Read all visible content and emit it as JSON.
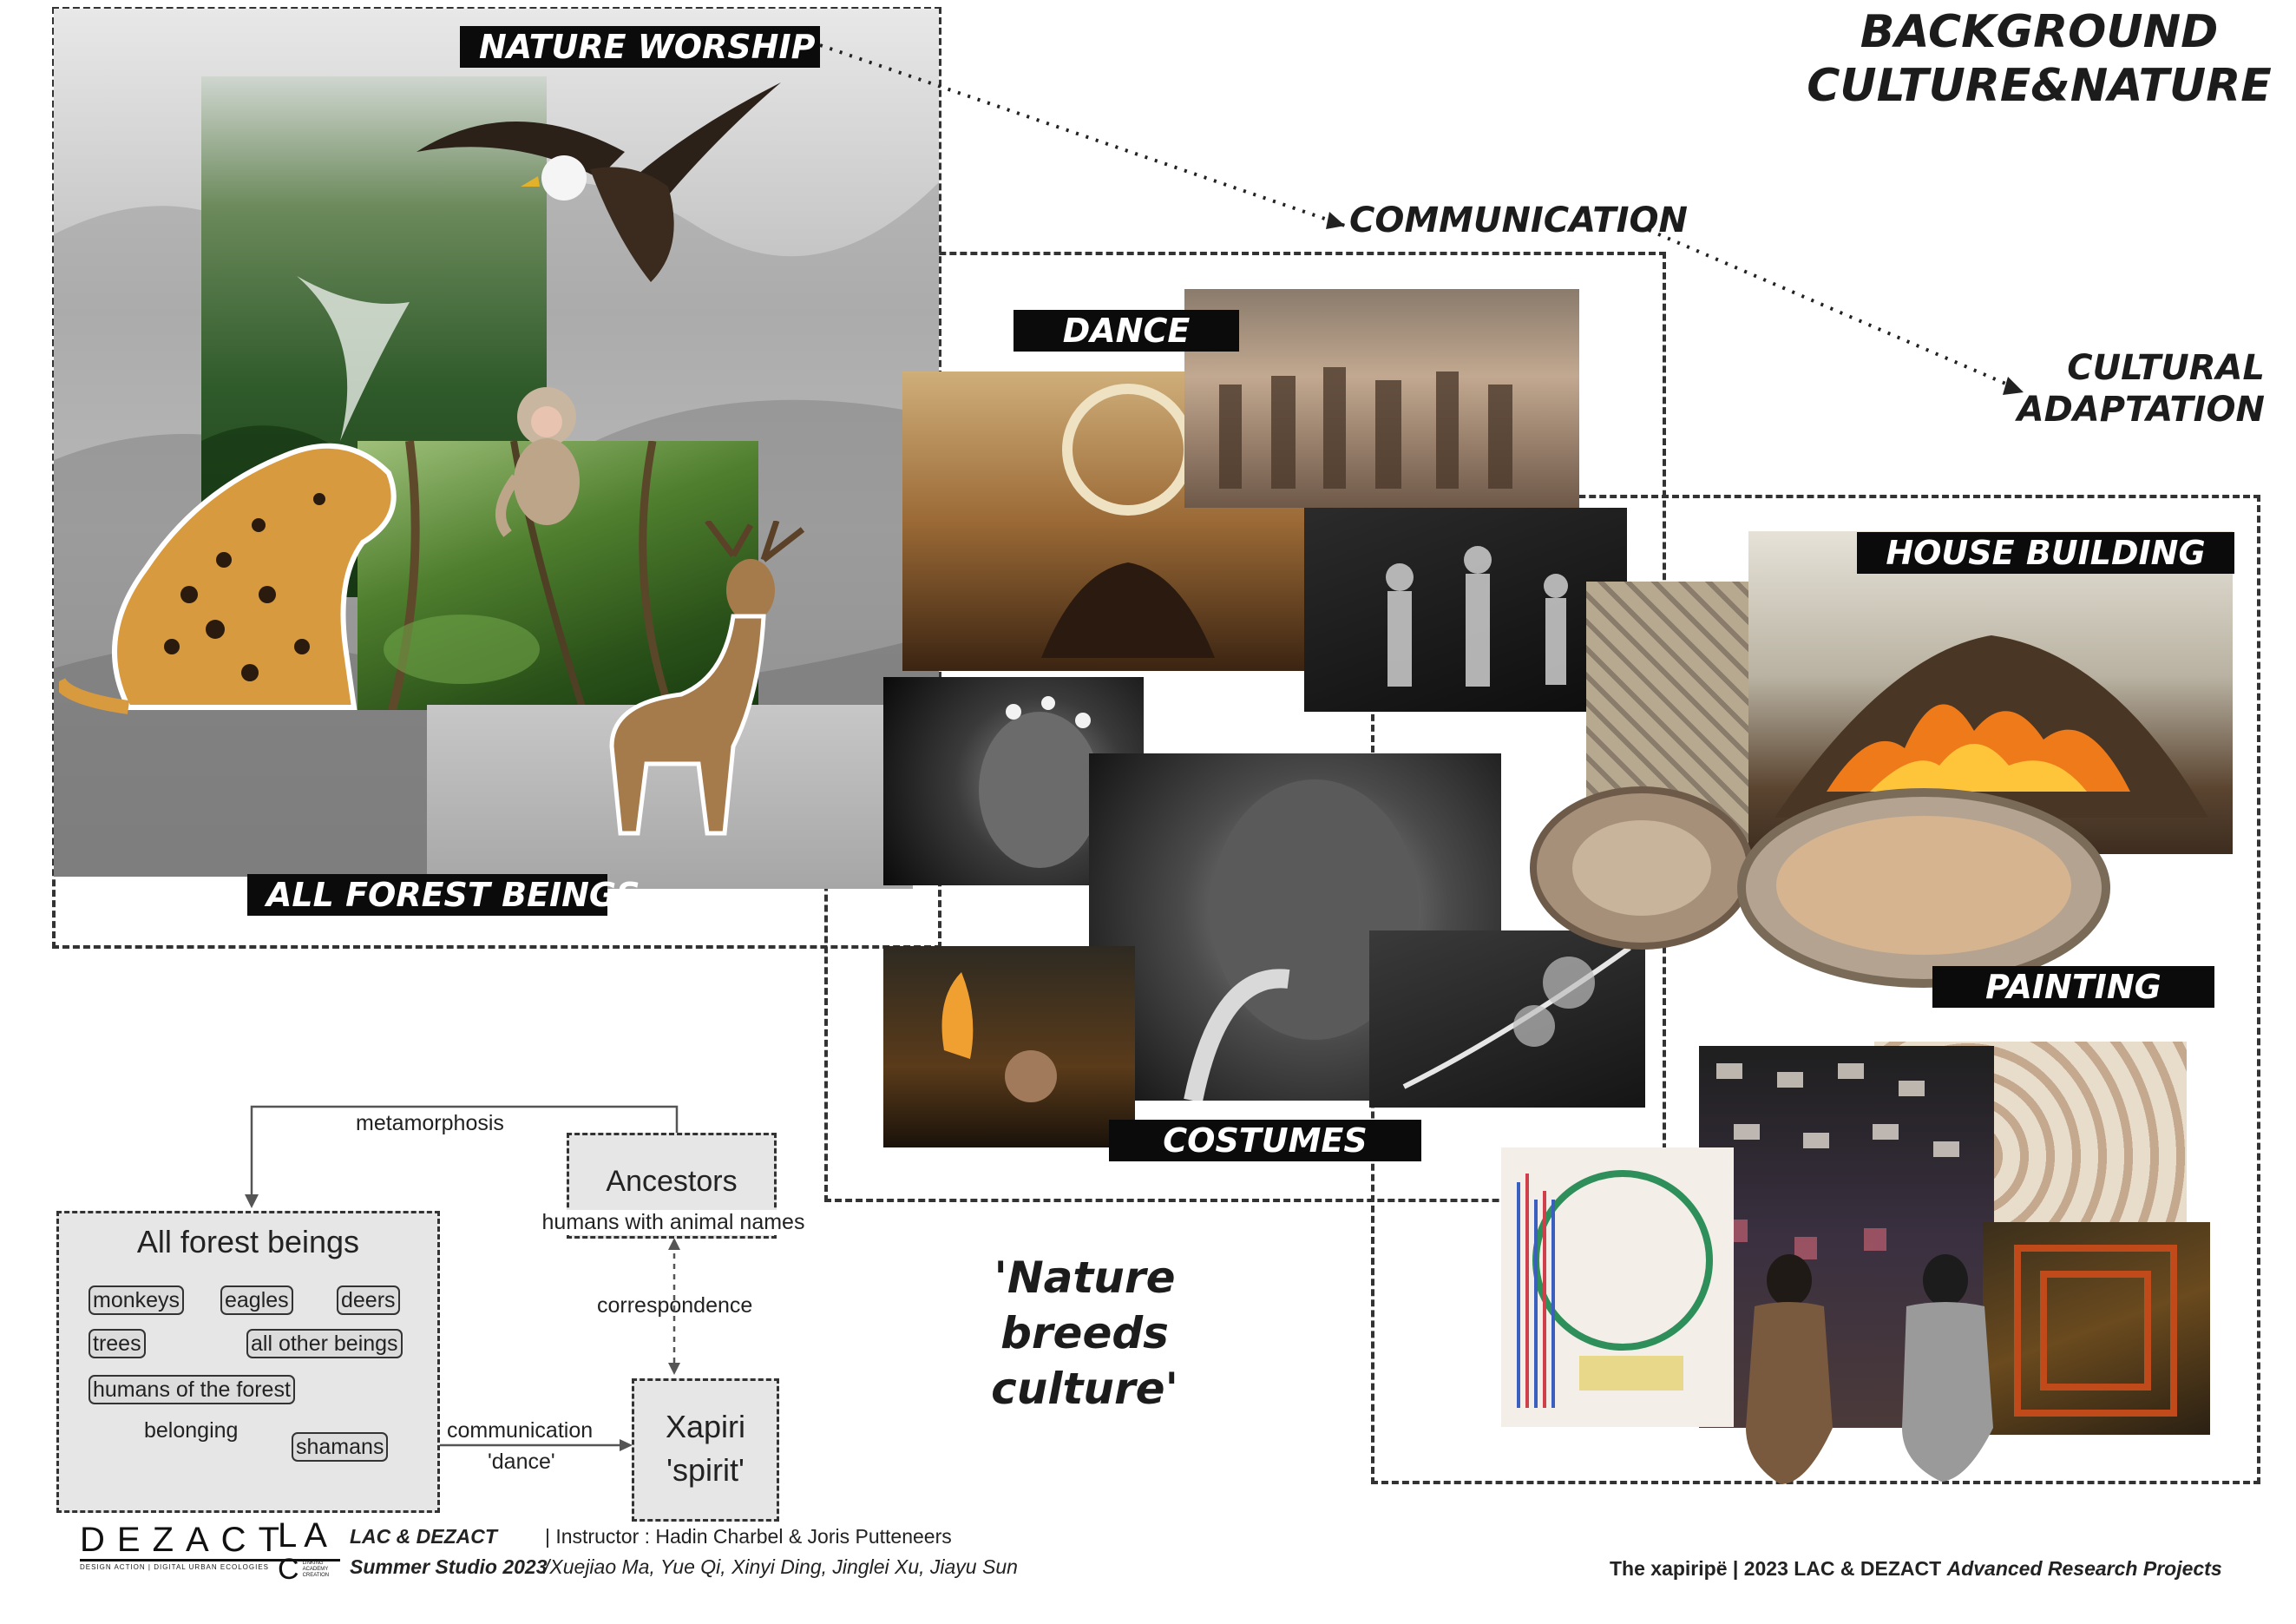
{
  "header": {
    "title_line1": "BACKGROUND",
    "title_line2": "CULTURE&NATURE"
  },
  "flow": {
    "nature_worship": "NATURE WORSHIP",
    "communication": "COMMUNICATION",
    "cultural_adaptation_line1": "CULTURAL",
    "cultural_adaptation_line2": "ADAPTATION"
  },
  "labels": {
    "all_forest_beings": "ALL FOREST BEINGS",
    "dance": "DANCE",
    "costumes": "COSTUMES",
    "house_building": "HOUSE BUILDING",
    "painting": "PAINTING"
  },
  "quote": {
    "line1": "'Nature breeds",
    "line2": "culture'"
  },
  "diagram": {
    "metamorphosis": "metamorphosis",
    "ancestors_title": "Ancestors",
    "ancestors_sub": "humans with animal names",
    "correspondence": "correspondence",
    "forest_title": "All forest beings",
    "tags": {
      "monkeys": "monkeys",
      "eagles": "eagles",
      "deers": "deers",
      "trees": "trees",
      "all_other": "all other beings",
      "humans": "humans of the forest",
      "shamans": "shamans"
    },
    "belonging": "belonging",
    "communication": "communication",
    "dance": "'dance'",
    "xapiri_line1": "Xapiri",
    "xapiri_line2": "'spirit'"
  },
  "footer": {
    "logo_dezact": "DEZACT",
    "logo_dezact_sub": "DESIGN ACTION | DIGITAL URBAN ECOLOGIES",
    "logo_la": "LA",
    "logo_c": "C",
    "logo_lac_sub": "LINKING ACADEMY CREATION",
    "org": "LAC & DEZACT",
    "instructor": "| Instructor : Hadin Charbel & Joris Putteneers",
    "studio": "Summer Studio 2023",
    "students": "/Xuejiao Ma, Yue Qi, Xinyi Ding, Jinglei Xu, Jiayu Sun",
    "project": "The xapiripë |",
    "year_org": "2023 LAC & DEZACT",
    "program": "Advanced Research Projects"
  },
  "colors": {
    "label_bg": "#0b0b0b",
    "dash": "#333333",
    "diagram_bg": "#e6e6e6"
  }
}
